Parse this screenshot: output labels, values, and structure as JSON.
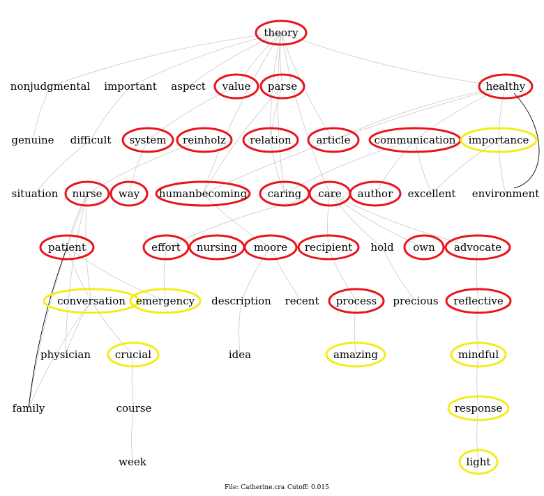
{
  "colors": {
    "red": "#e8141c",
    "yellow": "#f5ec16",
    "edge": "#c8c8c8",
    "edge_dark": "#000000"
  },
  "nodes": [
    {
      "id": "theory",
      "label": "theory",
      "ring": "red"
    },
    {
      "id": "nonjudgmental",
      "label": "nonjudgmental",
      "ring": "none"
    },
    {
      "id": "important",
      "label": "important",
      "ring": "none"
    },
    {
      "id": "aspect",
      "label": "aspect",
      "ring": "none"
    },
    {
      "id": "value",
      "label": "value",
      "ring": "red"
    },
    {
      "id": "parse",
      "label": "parse",
      "ring": "red"
    },
    {
      "id": "healthy",
      "label": "healthy",
      "ring": "red"
    },
    {
      "id": "genuine",
      "label": "genuine",
      "ring": "none"
    },
    {
      "id": "difficult",
      "label": "difficult",
      "ring": "none"
    },
    {
      "id": "system",
      "label": "system",
      "ring": "red"
    },
    {
      "id": "reinholz",
      "label": "reinholz",
      "ring": "red"
    },
    {
      "id": "relation",
      "label": "relation",
      "ring": "red"
    },
    {
      "id": "article",
      "label": "article",
      "ring": "red"
    },
    {
      "id": "communication",
      "label": "communication",
      "ring": "red"
    },
    {
      "id": "importance",
      "label": "importance",
      "ring": "yellow"
    },
    {
      "id": "situation",
      "label": "situation",
      "ring": "none"
    },
    {
      "id": "nurse",
      "label": "nurse",
      "ring": "red"
    },
    {
      "id": "way",
      "label": "way",
      "ring": "red"
    },
    {
      "id": "humanbecoming",
      "label": "humanbecoming",
      "ring": "red"
    },
    {
      "id": "caring",
      "label": "caring",
      "ring": "red"
    },
    {
      "id": "care",
      "label": "care",
      "ring": "red"
    },
    {
      "id": "author",
      "label": "author",
      "ring": "red"
    },
    {
      "id": "excellent",
      "label": "excellent",
      "ring": "none"
    },
    {
      "id": "environment",
      "label": "environment",
      "ring": "none"
    },
    {
      "id": "patient",
      "label": "patient",
      "ring": "red"
    },
    {
      "id": "effort",
      "label": "effort",
      "ring": "red"
    },
    {
      "id": "nursing",
      "label": "nursing",
      "ring": "red"
    },
    {
      "id": "moore",
      "label": "moore",
      "ring": "red"
    },
    {
      "id": "recipient",
      "label": "recipient",
      "ring": "red"
    },
    {
      "id": "hold",
      "label": "hold",
      "ring": "none"
    },
    {
      "id": "own",
      "label": "own",
      "ring": "red"
    },
    {
      "id": "advocate",
      "label": "advocate",
      "ring": "red"
    },
    {
      "id": "conversation",
      "label": "conversation",
      "ring": "yellow"
    },
    {
      "id": "emergency",
      "label": "emergency",
      "ring": "yellow"
    },
    {
      "id": "description",
      "label": "description",
      "ring": "none"
    },
    {
      "id": "recent",
      "label": "recent",
      "ring": "none"
    },
    {
      "id": "process",
      "label": "process",
      "ring": "red"
    },
    {
      "id": "precious",
      "label": "precious",
      "ring": "none"
    },
    {
      "id": "reflective",
      "label": "reflective",
      "ring": "red"
    },
    {
      "id": "physician",
      "label": "physician",
      "ring": "none"
    },
    {
      "id": "crucial",
      "label": "crucial",
      "ring": "yellow"
    },
    {
      "id": "idea",
      "label": "idea",
      "ring": "none"
    },
    {
      "id": "amazing",
      "label": "amazing",
      "ring": "yellow"
    },
    {
      "id": "mindful",
      "label": "mindful",
      "ring": "yellow"
    },
    {
      "id": "family",
      "label": "family",
      "ring": "none"
    },
    {
      "id": "course",
      "label": "course",
      "ring": "none"
    },
    {
      "id": "response",
      "label": "response",
      "ring": "yellow"
    },
    {
      "id": "week",
      "label": "week",
      "ring": "none"
    },
    {
      "id": "light",
      "label": "light",
      "ring": "yellow"
    }
  ],
  "edges": [
    [
      "theory",
      "nonjudgmental"
    ],
    [
      "theory",
      "important"
    ],
    [
      "theory",
      "aspect"
    ],
    [
      "theory",
      "value"
    ],
    [
      "theory",
      "parse"
    ],
    [
      "theory",
      "relation"
    ],
    [
      "theory",
      "article"
    ],
    [
      "theory",
      "humanbecoming"
    ],
    [
      "theory",
      "caring"
    ],
    [
      "theory",
      "care"
    ],
    [
      "theory",
      "healthy"
    ],
    [
      "nonjudgmental",
      "genuine"
    ],
    [
      "important",
      "difficult"
    ],
    [
      "difficult",
      "situation"
    ],
    [
      "value",
      "system"
    ],
    [
      "parse",
      "relation"
    ],
    [
      "parse",
      "humanbecoming"
    ],
    [
      "system",
      "way"
    ],
    [
      "reinholz",
      "nurse"
    ],
    [
      "relation",
      "caring"
    ],
    [
      "healthy",
      "article"
    ],
    [
      "healthy",
      "communication"
    ],
    [
      "healthy",
      "importance"
    ],
    [
      "healthy",
      "humanbecoming"
    ],
    [
      "healthy",
      "environment",
      "dark"
    ],
    [
      "communication",
      "caring"
    ],
    [
      "communication",
      "author"
    ],
    [
      "communication",
      "excellent"
    ],
    [
      "importance",
      "excellent"
    ],
    [
      "importance",
      "environment"
    ],
    [
      "nurse",
      "patient"
    ],
    [
      "nurse",
      "conversation"
    ],
    [
      "nurse",
      "physician"
    ],
    [
      "nurse",
      "family"
    ],
    [
      "humanbecoming",
      "moore"
    ],
    [
      "care",
      "effort"
    ],
    [
      "care",
      "recipient"
    ],
    [
      "care",
      "own"
    ],
    [
      "care",
      "hold"
    ],
    [
      "care",
      "advocate"
    ],
    [
      "patient",
      "conversation"
    ],
    [
      "patient",
      "emergency"
    ],
    [
      "patient",
      "family",
      "dark"
    ],
    [
      "effort",
      "emergency"
    ],
    [
      "moore",
      "description"
    ],
    [
      "moore",
      "recent"
    ],
    [
      "recipient",
      "process"
    ],
    [
      "hold",
      "precious"
    ],
    [
      "advocate",
      "reflective"
    ],
    [
      "conversation",
      "physician"
    ],
    [
      "conversation",
      "crucial"
    ],
    [
      "conversation",
      "family"
    ],
    [
      "description",
      "idea"
    ],
    [
      "process",
      "amazing"
    ],
    [
      "reflective",
      "mindful"
    ],
    [
      "crucial",
      "course"
    ],
    [
      "mindful",
      "response"
    ],
    [
      "course",
      "week"
    ],
    [
      "response",
      "light"
    ]
  ],
  "footer": {
    "file": "File: Catherine.cra",
    "cutoff": "Cutoff: 0.015"
  }
}
